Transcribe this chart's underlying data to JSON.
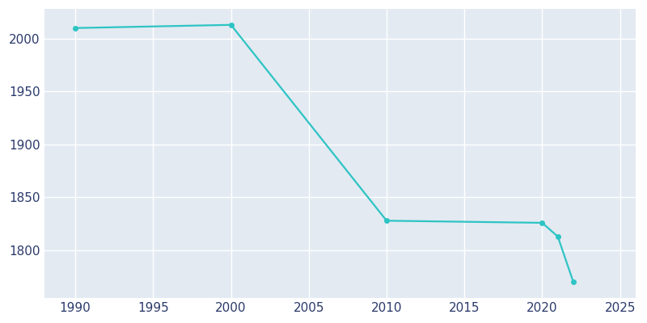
{
  "years": [
    1990,
    2000,
    2010,
    2020,
    2021,
    2022
  ],
  "population": [
    2010,
    2013,
    1828,
    1826,
    1813,
    1770
  ],
  "line_color": "#2EC4C4",
  "marker": "o",
  "marker_size": 4,
  "line_width": 1.6,
  "plot_bg_color": "#E3EAF2",
  "fig_bg_color": "#ffffff",
  "grid_color": "#ffffff",
  "tick_color": "#2B3A6B",
  "xlim": [
    1988,
    2026
  ],
  "ylim": [
    1755,
    2028
  ],
  "xticks": [
    1990,
    1995,
    2000,
    2005,
    2010,
    2015,
    2020,
    2025
  ],
  "yticks": [
    1800,
    1850,
    1900,
    1950,
    2000
  ],
  "tick_fontsize": 11
}
